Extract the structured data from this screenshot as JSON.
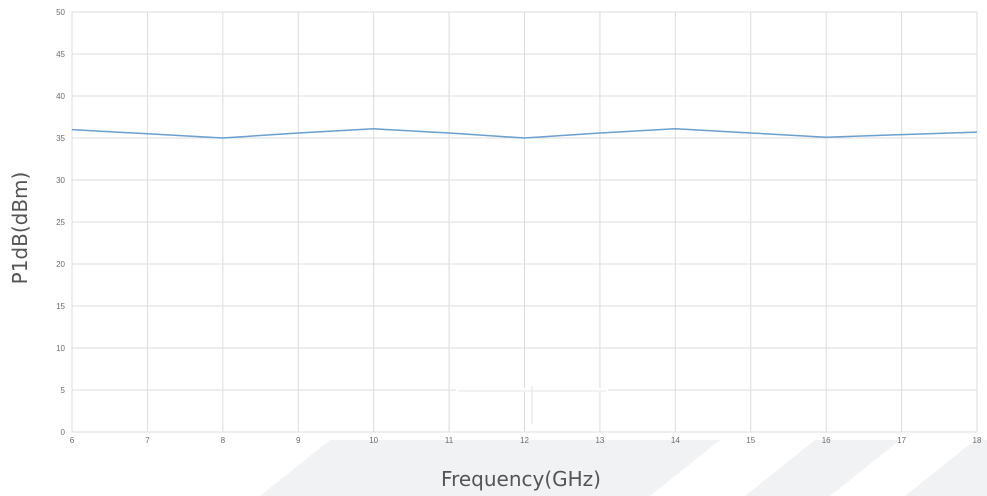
{
  "chart_data": {
    "type": "line",
    "title": "",
    "xlabel": "Frequency(GHz)",
    "ylabel": "P1dB(dBm)",
    "xlim": [
      6,
      18
    ],
    "ylim": [
      0,
      50
    ],
    "x_ticks": [
      "6",
      "7",
      "8",
      "9",
      "10",
      "11",
      "12",
      "13",
      "14",
      "15",
      "16",
      "17",
      "18"
    ],
    "y_ticks": [
      "0",
      "5",
      "10",
      "15",
      "20",
      "25",
      "30",
      "35",
      "40",
      "45",
      "50"
    ],
    "grid": true,
    "legend": "none",
    "series": [
      {
        "color": "#6a9fcf",
        "x": [
          6,
          7,
          8,
          9,
          10,
          11,
          12,
          13,
          14,
          15,
          16,
          17,
          18
        ],
        "y": [
          36.0,
          35.5,
          35.0,
          35.6,
          36.1,
          35.6,
          35.0,
          35.6,
          36.1,
          35.6,
          35.1,
          35.4,
          35.7
        ]
      }
    ],
    "colors": {
      "grid": "#dcdcdc",
      "background": "#ffffff",
      "decor": "#f1f2f4"
    }
  }
}
